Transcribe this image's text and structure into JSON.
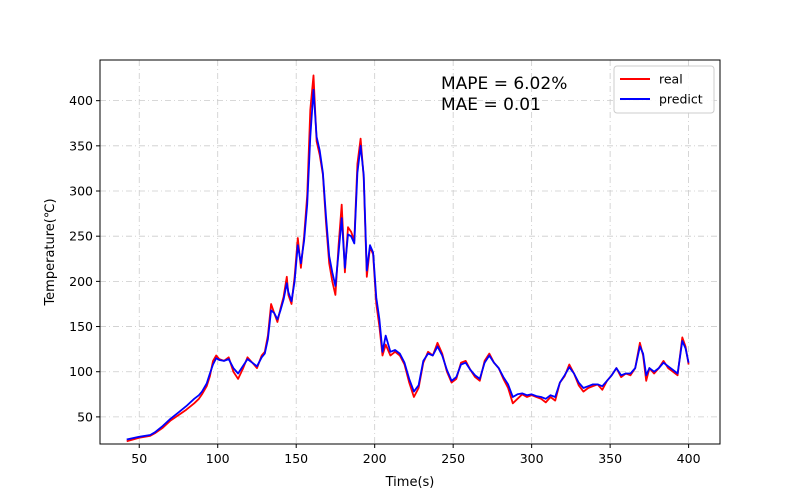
{
  "chart_data": {
    "type": "line",
    "xlabel": "Time(s)",
    "ylabel": "Temperature(℃)",
    "xlim": [
      25,
      420
    ],
    "ylim": [
      20,
      445
    ],
    "xticks": [
      50,
      100,
      150,
      200,
      250,
      300,
      350,
      400
    ],
    "yticks": [
      50,
      100,
      150,
      200,
      250,
      300,
      350,
      400
    ],
    "grid": true,
    "legend_position": "top-right",
    "annotations": [
      "MAPE = 6.02%",
      "MAE = 0.01"
    ],
    "series": [
      {
        "name": "real",
        "color": "#ff0000",
        "points": [
          [
            42,
            23
          ],
          [
            50,
            27
          ],
          [
            57,
            29
          ],
          [
            60,
            32
          ],
          [
            65,
            38
          ],
          [
            70,
            46
          ],
          [
            75,
            52
          ],
          [
            80,
            58
          ],
          [
            85,
            65
          ],
          [
            88,
            70
          ],
          [
            90,
            75
          ],
          [
            93,
            84
          ],
          [
            95,
            95
          ],
          [
            97,
            112
          ],
          [
            99,
            118
          ],
          [
            101,
            114
          ],
          [
            104,
            112
          ],
          [
            107,
            116
          ],
          [
            110,
            100
          ],
          [
            113,
            92
          ],
          [
            116,
            103
          ],
          [
            119,
            116
          ],
          [
            122,
            110
          ],
          [
            125,
            104
          ],
          [
            128,
            118
          ],
          [
            130,
            122
          ],
          [
            132,
            140
          ],
          [
            134,
            175
          ],
          [
            136,
            165
          ],
          [
            138,
            155
          ],
          [
            140,
            170
          ],
          [
            142,
            183
          ],
          [
            144,
            205
          ],
          [
            145,
            185
          ],
          [
            147,
            175
          ],
          [
            149,
            205
          ],
          [
            151,
            248
          ],
          [
            153,
            215
          ],
          [
            155,
            250
          ],
          [
            157,
            295
          ],
          [
            159,
            390
          ],
          [
            161,
            428
          ],
          [
            163,
            355
          ],
          [
            165,
            340
          ],
          [
            167,
            318
          ],
          [
            169,
            265
          ],
          [
            171,
            220
          ],
          [
            173,
            200
          ],
          [
            175,
            185
          ],
          [
            177,
            240
          ],
          [
            179,
            285
          ],
          [
            181,
            210
          ],
          [
            183,
            260
          ],
          [
            185,
            255
          ],
          [
            187,
            245
          ],
          [
            189,
            330
          ],
          [
            191,
            358
          ],
          [
            193,
            315
          ],
          [
            195,
            205
          ],
          [
            197,
            238
          ],
          [
            199,
            230
          ],
          [
            201,
            175
          ],
          [
            203,
            150
          ],
          [
            205,
            118
          ],
          [
            207,
            130
          ],
          [
            210,
            118
          ],
          [
            213,
            122
          ],
          [
            216,
            118
          ],
          [
            219,
            108
          ],
          [
            222,
            88
          ],
          [
            225,
            72
          ],
          [
            228,
            82
          ],
          [
            231,
            110
          ],
          [
            234,
            122
          ],
          [
            237,
            118
          ],
          [
            240,
            132
          ],
          [
            243,
            120
          ],
          [
            246,
            100
          ],
          [
            249,
            88
          ],
          [
            252,
            92
          ],
          [
            255,
            110
          ],
          [
            258,
            112
          ],
          [
            261,
            102
          ],
          [
            264,
            94
          ],
          [
            267,
            90
          ],
          [
            270,
            112
          ],
          [
            273,
            120
          ],
          [
            276,
            110
          ],
          [
            279,
            104
          ],
          [
            282,
            92
          ],
          [
            285,
            82
          ],
          [
            288,
            65
          ],
          [
            291,
            70
          ],
          [
            294,
            75
          ],
          [
            297,
            72
          ],
          [
            300,
            74
          ],
          [
            303,
            72
          ],
          [
            306,
            70
          ],
          [
            309,
            66
          ],
          [
            312,
            72
          ],
          [
            315,
            68
          ],
          [
            318,
            88
          ],
          [
            321,
            95
          ],
          [
            324,
            108
          ],
          [
            327,
            98
          ],
          [
            330,
            85
          ],
          [
            333,
            78
          ],
          [
            336,
            82
          ],
          [
            339,
            84
          ],
          [
            342,
            86
          ],
          [
            345,
            80
          ],
          [
            348,
            90
          ],
          [
            351,
            96
          ],
          [
            354,
            104
          ],
          [
            357,
            94
          ],
          [
            360,
            98
          ],
          [
            363,
            96
          ],
          [
            366,
            104
          ],
          [
            369,
            132
          ],
          [
            371,
            118
          ],
          [
            373,
            90
          ],
          [
            375,
            104
          ],
          [
            378,
            98
          ],
          [
            381,
            104
          ],
          [
            384,
            112
          ],
          [
            387,
            104
          ],
          [
            390,
            100
          ],
          [
            393,
            96
          ],
          [
            396,
            138
          ],
          [
            398,
            128
          ],
          [
            400,
            108
          ]
        ]
      },
      {
        "name": "predict",
        "color": "#0000ff",
        "points": [
          [
            42,
            25
          ],
          [
            50,
            28
          ],
          [
            57,
            30
          ],
          [
            60,
            33
          ],
          [
            65,
            40
          ],
          [
            70,
            48
          ],
          [
            75,
            55
          ],
          [
            80,
            62
          ],
          [
            85,
            70
          ],
          [
            88,
            74
          ],
          [
            90,
            78
          ],
          [
            93,
            87
          ],
          [
            95,
            98
          ],
          [
            97,
            108
          ],
          [
            99,
            115
          ],
          [
            101,
            113
          ],
          [
            104,
            112
          ],
          [
            107,
            114
          ],
          [
            110,
            104
          ],
          [
            113,
            98
          ],
          [
            116,
            106
          ],
          [
            119,
            114
          ],
          [
            122,
            110
          ],
          [
            125,
            106
          ],
          [
            128,
            116
          ],
          [
            130,
            120
          ],
          [
            132,
            136
          ],
          [
            134,
            168
          ],
          [
            136,
            165
          ],
          [
            138,
            158
          ],
          [
            140,
            168
          ],
          [
            142,
            180
          ],
          [
            144,
            198
          ],
          [
            145,
            188
          ],
          [
            147,
            178
          ],
          [
            149,
            200
          ],
          [
            151,
            240
          ],
          [
            153,
            220
          ],
          [
            155,
            245
          ],
          [
            157,
            285
          ],
          [
            159,
            360
          ],
          [
            161,
            412
          ],
          [
            163,
            360
          ],
          [
            165,
            345
          ],
          [
            167,
            320
          ],
          [
            169,
            272
          ],
          [
            171,
            228
          ],
          [
            173,
            210
          ],
          [
            175,
            195
          ],
          [
            177,
            232
          ],
          [
            179,
            270
          ],
          [
            181,
            215
          ],
          [
            183,
            252
          ],
          [
            185,
            250
          ],
          [
            187,
            242
          ],
          [
            189,
            320
          ],
          [
            191,
            350
          ],
          [
            193,
            318
          ],
          [
            195,
            212
          ],
          [
            197,
            240
          ],
          [
            199,
            232
          ],
          [
            201,
            182
          ],
          [
            203,
            158
          ],
          [
            205,
            122
          ],
          [
            207,
            140
          ],
          [
            210,
            122
          ],
          [
            213,
            124
          ],
          [
            216,
            120
          ],
          [
            219,
            110
          ],
          [
            222,
            92
          ],
          [
            225,
            78
          ],
          [
            228,
            85
          ],
          [
            231,
            112
          ],
          [
            234,
            120
          ],
          [
            237,
            118
          ],
          [
            240,
            128
          ],
          [
            243,
            118
          ],
          [
            246,
            102
          ],
          [
            249,
            90
          ],
          [
            252,
            94
          ],
          [
            255,
            108
          ],
          [
            258,
            110
          ],
          [
            261,
            102
          ],
          [
            264,
            96
          ],
          [
            267,
            92
          ],
          [
            270,
            110
          ],
          [
            273,
            118
          ],
          [
            276,
            110
          ],
          [
            279,
            104
          ],
          [
            282,
            94
          ],
          [
            285,
            86
          ],
          [
            288,
            72
          ],
          [
            291,
            75
          ],
          [
            294,
            76
          ],
          [
            297,
            74
          ],
          [
            300,
            75
          ],
          [
            303,
            73
          ],
          [
            306,
            72
          ],
          [
            309,
            70
          ],
          [
            312,
            74
          ],
          [
            315,
            72
          ],
          [
            318,
            88
          ],
          [
            321,
            96
          ],
          [
            324,
            105
          ],
          [
            327,
            98
          ],
          [
            330,
            88
          ],
          [
            333,
            82
          ],
          [
            336,
            84
          ],
          [
            339,
            86
          ],
          [
            342,
            86
          ],
          [
            345,
            84
          ],
          [
            348,
            90
          ],
          [
            351,
            96
          ],
          [
            354,
            104
          ],
          [
            357,
            96
          ],
          [
            360,
            98
          ],
          [
            363,
            98
          ],
          [
            366,
            104
          ],
          [
            369,
            128
          ],
          [
            371,
            120
          ],
          [
            373,
            96
          ],
          [
            375,
            104
          ],
          [
            378,
            100
          ],
          [
            381,
            104
          ],
          [
            384,
            110
          ],
          [
            387,
            106
          ],
          [
            390,
            102
          ],
          [
            393,
            98
          ],
          [
            396,
            134
          ],
          [
            398,
            126
          ],
          [
            400,
            110
          ]
        ]
      }
    ]
  }
}
